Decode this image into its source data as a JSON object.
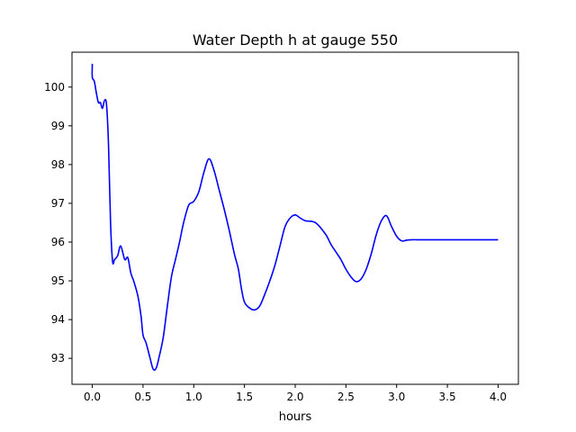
{
  "chart_data": {
    "type": "line",
    "title": "Water Depth h at gauge 550",
    "xlabel": "hours",
    "ylabel": "",
    "xlim": [
      -0.2,
      4.2
    ],
    "ylim": [
      92.33,
      10.9
    ],
    "xticks": [
      0.0,
      0.5,
      1.0,
      1.5,
      2.0,
      2.5,
      3.0,
      3.5,
      4.0
    ],
    "xtick_labels": [
      "0.0",
      "0.5",
      "1.0",
      "1.5",
      "2.0",
      "2.5",
      "3.0",
      "3.5",
      "4.0"
    ],
    "yticks": [
      93,
      94,
      95,
      96,
      97,
      98,
      99,
      100
    ],
    "ytick_labels": [
      "93",
      "94",
      "95",
      "96",
      "97",
      "98",
      "99",
      "100"
    ],
    "grid": false,
    "legend": "none",
    "series": [
      {
        "color": "#0000ff",
        "x": [
          0.0,
          0.0,
          0.02,
          0.04,
          0.06,
          0.08,
          0.1,
          0.12,
          0.14,
          0.16,
          0.18,
          0.2,
          0.22,
          0.25,
          0.28,
          0.32,
          0.35,
          0.38,
          0.41,
          0.45,
          0.48,
          0.5,
          0.53,
          0.57,
          0.6,
          0.63,
          0.66,
          0.7,
          0.74,
          0.78,
          0.82,
          0.86,
          0.9,
          0.95,
          1.0,
          1.05,
          1.1,
          1.15,
          1.2,
          1.25,
          1.3,
          1.35,
          1.4,
          1.44,
          1.47,
          1.5,
          1.55,
          1.6,
          1.65,
          1.7,
          1.75,
          1.8,
          1.85,
          1.9,
          1.95,
          2.0,
          2.05,
          2.1,
          2.2,
          2.3,
          2.35,
          2.4,
          2.45,
          2.5,
          2.55,
          2.6,
          2.65,
          2.7,
          2.75,
          2.8,
          2.85,
          2.9,
          2.95,
          3.0,
          3.05,
          3.1,
          3.15,
          3.2,
          3.25,
          3.3,
          3.35,
          3.4,
          3.45,
          3.5,
          3.55,
          3.6,
          3.65,
          3.7,
          3.75,
          3.8,
          3.85,
          3.9,
          3.95,
          4.0
        ],
        "y": [
          100.6,
          100.25,
          100.15,
          99.85,
          99.6,
          99.6,
          99.45,
          99.65,
          99.55,
          98.5,
          96.5,
          95.5,
          95.55,
          95.65,
          95.9,
          95.55,
          95.6,
          95.2,
          94.98,
          94.6,
          94.1,
          93.6,
          93.4,
          93.0,
          92.72,
          92.75,
          93.05,
          93.55,
          94.35,
          95.1,
          95.55,
          96.0,
          96.5,
          96.95,
          97.05,
          97.3,
          97.8,
          98.15,
          97.85,
          97.35,
          96.85,
          96.3,
          95.7,
          95.3,
          94.8,
          94.45,
          94.3,
          94.25,
          94.35,
          94.65,
          95.0,
          95.4,
          95.9,
          96.4,
          96.62,
          96.7,
          96.62,
          96.55,
          96.5,
          96.2,
          95.95,
          95.75,
          95.55,
          95.3,
          95.1,
          94.98,
          95.05,
          95.3,
          95.7,
          96.2,
          96.55,
          96.68,
          96.4,
          96.15,
          96.03,
          96.05,
          96.06,
          96.06,
          96.06,
          96.06,
          96.06,
          96.06,
          96.06,
          96.06,
          96.06,
          96.06,
          96.06,
          96.06,
          96.06,
          96.06,
          96.06,
          96.06,
          96.06,
          96.06
        ]
      }
    ]
  }
}
